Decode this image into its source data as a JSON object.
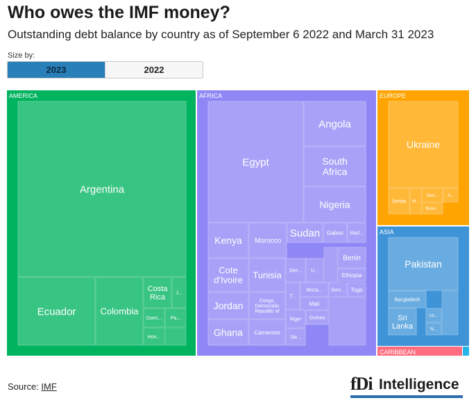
{
  "header": {
    "title": "Who owes the IMF money?",
    "subtitle": "Outstanding debt balance by country as of September 6 2022 and March 31 2023"
  },
  "size_by": {
    "label": "Size by:",
    "options": [
      "2023",
      "2022"
    ],
    "selected": "2023"
  },
  "footer": {
    "source_prefix": "Source: ",
    "source_link": "IMF",
    "logo_mark": "fDi",
    "logo_text": "Intelligence",
    "logo_color": "#2b6cb0"
  },
  "chart_data": {
    "type": "treemap",
    "size_by": "2023",
    "regions": [
      {
        "name": "AMERICA",
        "color": "#00b35f",
        "countries": [
          {
            "name": "Argentina",
            "label": "Argentina"
          },
          {
            "name": "Ecuador",
            "label": "Ecuador"
          },
          {
            "name": "Colombia",
            "label": "Colombia"
          },
          {
            "name": "Costa Rica",
            "label": "Costa\nRica"
          },
          {
            "name": "J...",
            "label": "J..."
          },
          {
            "name": "Domi...",
            "label": "Domi..."
          },
          {
            "name": "Pa...",
            "label": "Pa..."
          },
          {
            "name": "Hon...",
            "label": "Hon..."
          }
        ]
      },
      {
        "name": "AFRICA",
        "color": "#8f87f5",
        "countries": [
          {
            "name": "Egypt",
            "label": "Egypt"
          },
          {
            "name": "Angola",
            "label": "Angola"
          },
          {
            "name": "South Africa",
            "label": "South\nAfrica"
          },
          {
            "name": "Nigeria",
            "label": "Nigeria"
          },
          {
            "name": "Kenya",
            "label": "Kenya"
          },
          {
            "name": "Morocco",
            "label": "Morocco"
          },
          {
            "name": "Sudan",
            "label": "Sudan"
          },
          {
            "name": "Gabon",
            "label": "Gabon"
          },
          {
            "name": "Mad...",
            "label": "Mad..."
          },
          {
            "name": "Cote d'Ivoire",
            "label": "Cote\nd'Ivoire"
          },
          {
            "name": "Tunisia",
            "label": "Tunisia"
          },
          {
            "name": "Sen...",
            "label": "Sen..."
          },
          {
            "name": "U...",
            "label": "U..."
          },
          {
            "name": "Benin",
            "label": "Benin"
          },
          {
            "name": "Ethiopia",
            "label": "Ethiopia"
          },
          {
            "name": "Jordan",
            "label": "Jordan"
          },
          {
            "name": "Congo, Democratic Republic of",
            "label": "Congo,\nDemocratic\nRepublic of"
          },
          {
            "name": "T...",
            "label": "T..."
          },
          {
            "name": "Moza...",
            "label": "Moza..."
          },
          {
            "name": "Som...",
            "label": "Som..."
          },
          {
            "name": "Togo",
            "label": "Togo"
          },
          {
            "name": "Mali",
            "label": "Mali"
          },
          {
            "name": "Ghana",
            "label": "Ghana"
          },
          {
            "name": "Cameroon",
            "label": "Cameroon"
          },
          {
            "name": "Niger",
            "label": "Niger"
          },
          {
            "name": "Guinea",
            "label": "Guinea"
          },
          {
            "name": "Sie...",
            "label": "Sie..."
          }
        ]
      },
      {
        "name": "EUROPE",
        "color": "#ffa400",
        "countries": [
          {
            "name": "Ukraine",
            "label": "Ukraine"
          },
          {
            "name": "Serbia",
            "label": "Serbia"
          },
          {
            "name": "M...",
            "label": "M..."
          },
          {
            "name": "Geo...",
            "label": "Geo..."
          },
          {
            "name": "A...",
            "label": "A..."
          },
          {
            "name": "Bosn...",
            "label": "Bosn..."
          }
        ]
      },
      {
        "name": "ASIA",
        "color": "#3f94d8",
        "countries": [
          {
            "name": "Pakistan",
            "label": "Pakistan"
          },
          {
            "name": "Bangladesh",
            "label": "Bangladesh"
          },
          {
            "name": "Sri Lanka",
            "label": "Sri\nLanka"
          },
          {
            "name": "Uz...",
            "label": "Uz..."
          },
          {
            "name": "N...",
            "label": "N..."
          }
        ]
      },
      {
        "name": "CARIBBEAN",
        "color": "#ff6d7e",
        "countries": []
      }
    ]
  }
}
